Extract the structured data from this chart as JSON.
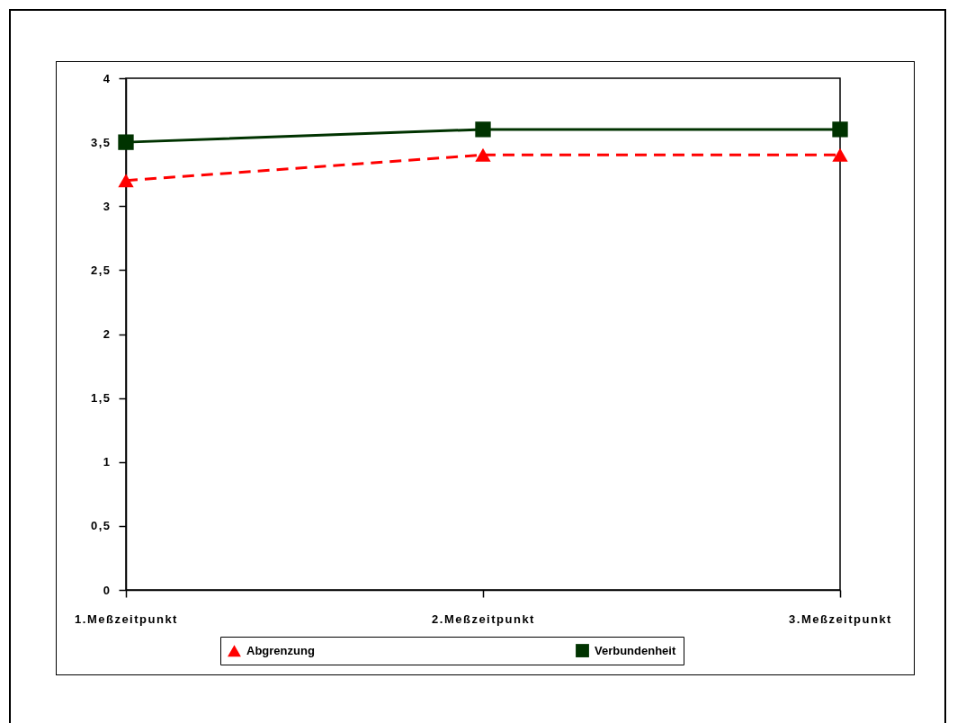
{
  "chart_data": {
    "type": "line",
    "categories": [
      "1.Meßzeitpunkt",
      "2.Meßzeitpunkt",
      "3.Meßzeitpunkt"
    ],
    "series": [
      {
        "name": "Abgrenzung",
        "color": "#ff0000",
        "values": [
          3.2,
          3.4,
          3.4
        ],
        "marker": "triangle",
        "line_style": "dashed"
      },
      {
        "name": "Verbundenheit",
        "color": "#003300",
        "values": [
          3.5,
          3.6,
          3.6
        ],
        "marker": "square",
        "line_style": "solid"
      }
    ],
    "ylim": [
      0,
      4
    ],
    "yticks": [
      0,
      {
        "value": 0.5,
        "label": "0,5"
      },
      1,
      {
        "value": 1.5,
        "label": "1,5"
      },
      2,
      {
        "value": 2.5,
        "label": "2,5"
      },
      3,
      {
        "value": 3.5,
        "label": "3,5"
      },
      4
    ],
    "legend": "bottom"
  }
}
